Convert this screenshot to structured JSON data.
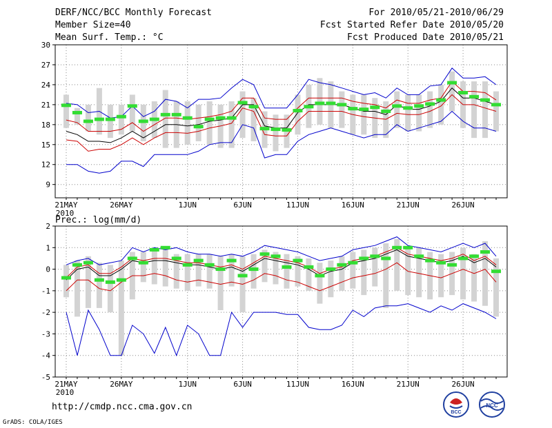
{
  "header": {
    "title": "DERF/NCC/BCC Monthly Forecast",
    "member": "Member Size=40",
    "variable": "Mean Surf. Temp.: °C",
    "period": "For 2010/05/21-2010/06/29",
    "started": "Fcst Started Refer Date 2010/05/20",
    "produced": "Fcst Produced Date 2010/05/21"
  },
  "footer": {
    "url": "http://cmdp.ncc.cma.gov.cn",
    "credit": "GrADS: COLA/IGES",
    "logo_bcc": "BCC",
    "logo_ncc": "NCC"
  },
  "colors": {
    "ensemble_bar": "#d3d3d3",
    "observation": "#33dd33",
    "mean": "#000000",
    "spread": "#cc0000",
    "extreme": "#0000cc",
    "grid": "#888888"
  },
  "chart_data": [
    {
      "type": "line",
      "title": "Mean Surf. Temp.: °C",
      "xlabel": "",
      "ylabel": "",
      "x": [
        "21MAY",
        "22",
        "23",
        "24",
        "25",
        "26MAY",
        "27",
        "28",
        "29",
        "30",
        "31",
        "1JUN",
        "2",
        "3",
        "4",
        "5",
        "6JUN",
        "7",
        "8",
        "9",
        "10",
        "11JUN",
        "12",
        "13",
        "14",
        "15",
        "16JUN",
        "17",
        "18",
        "19",
        "20",
        "21JUN",
        "22",
        "23",
        "24",
        "25",
        "26JUN",
        "27",
        "28",
        "29"
      ],
      "xticks": [
        {
          "label": "21MAY",
          "index": 0,
          "sub": "2010"
        },
        {
          "label": "26MAY",
          "index": 5
        },
        {
          "label": "1JUN",
          "index": 11
        },
        {
          "label": "6JUN",
          "index": 16
        },
        {
          "label": "11JUN",
          "index": 21
        },
        {
          "label": "16JUN",
          "index": 26
        },
        {
          "label": "21JUN",
          "index": 31
        },
        {
          "label": "26JUN",
          "index": 36
        }
      ],
      "yticks": [
        9,
        12,
        15,
        18,
        21,
        24,
        27,
        30
      ],
      "ylim": [
        7,
        30
      ],
      "series": [
        {
          "name": "max",
          "values": [
            21.2,
            21.0,
            19.8,
            20.0,
            19.0,
            19.2,
            20.8,
            19.2,
            20.0,
            21.8,
            21.5,
            20.5,
            21.8,
            21.8,
            22.0,
            23.5,
            24.8,
            24.0,
            20.5,
            20.5,
            20.5,
            22.5,
            24.8,
            24.3,
            24.0,
            23.5,
            23.0,
            22.5,
            22.8,
            22.0,
            23.5,
            22.5,
            22.5,
            23.8,
            24.0,
            26.5,
            25.0,
            25.0,
            25.2,
            24.0
          ]
        },
        {
          "name": "upper",
          "values": [
            18.7,
            18.3,
            17.0,
            17.0,
            17.0,
            17.3,
            18.3,
            17.0,
            18.0,
            19.0,
            19.0,
            18.8,
            19.0,
            19.2,
            19.5,
            20.0,
            22.0,
            22.0,
            19.0,
            18.8,
            18.8,
            20.5,
            22.0,
            22.0,
            22.0,
            22.0,
            21.5,
            21.2,
            21.0,
            20.5,
            21.7,
            21.2,
            21.2,
            21.7,
            22.0,
            24.5,
            23.0,
            23.0,
            22.8,
            21.7
          ]
        },
        {
          "name": "mean",
          "values": [
            17.0,
            16.5,
            15.5,
            15.5,
            15.3,
            16.0,
            17.0,
            16.0,
            17.0,
            18.0,
            18.0,
            17.8,
            18.0,
            18.5,
            18.7,
            19.0,
            21.0,
            21.0,
            17.8,
            17.5,
            17.5,
            19.8,
            21.0,
            21.0,
            21.0,
            21.0,
            20.5,
            20.0,
            20.0,
            19.5,
            21.0,
            20.3,
            20.3,
            20.8,
            21.5,
            23.5,
            22.0,
            22.0,
            21.5,
            21.0
          ]
        },
        {
          "name": "lower",
          "values": [
            15.7,
            15.5,
            14.0,
            14.3,
            14.3,
            15.0,
            16.0,
            15.0,
            16.0,
            16.8,
            16.8,
            16.7,
            17.0,
            17.5,
            17.8,
            18.2,
            20.5,
            20.0,
            16.5,
            16.3,
            16.3,
            18.5,
            20.0,
            20.0,
            20.0,
            20.0,
            19.5,
            19.2,
            19.0,
            18.8,
            19.7,
            19.5,
            19.5,
            20.0,
            20.8,
            22.5,
            21.0,
            21.0,
            20.5,
            20.0
          ]
        },
        {
          "name": "min",
          "values": [
            12.0,
            12.0,
            11.0,
            10.7,
            11.0,
            12.5,
            12.5,
            11.7,
            13.5,
            13.5,
            13.5,
            13.5,
            14.0,
            15.0,
            15.3,
            15.3,
            18.0,
            17.5,
            13.0,
            13.5,
            13.5,
            15.5,
            16.5,
            17.0,
            17.5,
            17.0,
            16.5,
            16.0,
            16.5,
            16.5,
            18.0,
            17.0,
            17.5,
            18.0,
            18.5,
            20.0,
            18.5,
            17.5,
            17.5,
            17.0
          ]
        },
        {
          "name": "observed",
          "values": [
            20.9,
            19.8,
            18.5,
            18.8,
            18.8,
            19.2,
            20.8,
            18.5,
            18.8,
            19.5,
            19.5,
            19.0,
            17.7,
            18.8,
            19.0,
            19.0,
            21.3,
            20.7,
            17.4,
            17.3,
            17.2,
            20.1,
            20.7,
            21.2,
            21.2,
            21.0,
            20.4,
            20.3,
            20.6,
            20.0,
            20.8,
            20.5,
            20.8,
            21.1,
            21.7,
            24.3,
            22.8,
            22.2,
            21.7,
            21.0
          ]
        }
      ],
      "ensemble_range": [
        [
          17.5,
          22.5
        ],
        [
          18.0,
          20.5
        ],
        [
          17.0,
          21.0
        ],
        [
          16.5,
          23.5
        ],
        [
          16.0,
          21.0
        ],
        [
          16.5,
          21.0
        ],
        [
          17.0,
          22.5
        ],
        [
          15.5,
          21.0
        ],
        [
          16.0,
          21.5
        ],
        [
          14.5,
          23.2
        ],
        [
          14.5,
          21.5
        ],
        [
          15.0,
          21.5
        ],
        [
          15.5,
          21.0
        ],
        [
          15.0,
          21.5
        ],
        [
          14.5,
          21.0
        ],
        [
          14.5,
          21.5
        ],
        [
          16.0,
          23.0
        ],
        [
          15.5,
          22.0
        ],
        [
          14.5,
          20.0
        ],
        [
          14.0,
          19.5
        ],
        [
          14.5,
          19.5
        ],
        [
          16.5,
          22.5
        ],
        [
          17.5,
          24.0
        ],
        [
          18.0,
          25.0
        ],
        [
          17.5,
          24.5
        ],
        [
          17.5,
          23.0
        ],
        [
          16.5,
          22.5
        ],
        [
          16.5,
          22.5
        ],
        [
          16.0,
          22.0
        ],
        [
          16.0,
          21.5
        ],
        [
          17.5,
          23.0
        ],
        [
          17.0,
          22.5
        ],
        [
          17.0,
          22.5
        ],
        [
          17.5,
          23.0
        ],
        [
          18.0,
          24.0
        ],
        [
          20.0,
          26.0
        ],
        [
          17.5,
          24.5
        ],
        [
          16.0,
          24.5
        ],
        [
          16.0,
          24.5
        ],
        [
          17.0,
          23.0
        ]
      ]
    },
    {
      "type": "line",
      "title": "Prec.: log(mm/d)",
      "xlabel": "",
      "ylabel": "",
      "x": [
        "21MAY",
        "22",
        "23",
        "24",
        "25",
        "26MAY",
        "27",
        "28",
        "29",
        "30",
        "31",
        "1JUN",
        "2",
        "3",
        "4",
        "5",
        "6JUN",
        "7",
        "8",
        "9",
        "10",
        "11JUN",
        "12",
        "13",
        "14",
        "15",
        "16JUN",
        "17",
        "18",
        "19",
        "20",
        "21JUN",
        "22",
        "23",
        "24",
        "25",
        "26JUN",
        "27",
        "28",
        "29"
      ],
      "xticks": [
        {
          "label": "21MAY",
          "index": 0,
          "sub": "2010"
        },
        {
          "label": "26MAY",
          "index": 5
        },
        {
          "label": "1JUN",
          "index": 11
        },
        {
          "label": "6JUN",
          "index": 16
        },
        {
          "label": "11JUN",
          "index": 21
        },
        {
          "label": "16JUN",
          "index": 26
        },
        {
          "label": "21JUN",
          "index": 31
        },
        {
          "label": "26JUN",
          "index": 36
        }
      ],
      "yticks": [
        -5,
        -4,
        -3,
        -2,
        -1,
        0,
        1,
        2
      ],
      "ylim": [
        -5,
        2
      ],
      "series": [
        {
          "name": "max",
          "values": [
            0.2,
            0.4,
            0.5,
            0.2,
            0.3,
            0.4,
            1.0,
            0.8,
            1.0,
            0.9,
            1.0,
            0.8,
            0.7,
            0.7,
            0.6,
            0.7,
            0.6,
            0.8,
            1.1,
            1.0,
            0.9,
            0.8,
            0.6,
            0.4,
            0.5,
            0.6,
            0.9,
            1.0,
            1.1,
            1.3,
            1.5,
            1.1,
            1.0,
            0.9,
            0.8,
            1.0,
            1.2,
            1.0,
            1.2,
            0.6
          ]
        },
        {
          "name": "upper",
          "values": [
            -0.4,
            0.1,
            0.2,
            -0.2,
            -0.2,
            0.1,
            0.5,
            0.4,
            0.5,
            0.5,
            0.4,
            0.3,
            0.3,
            0.2,
            0.1,
            0.2,
            0.0,
            0.3,
            0.6,
            0.5,
            0.4,
            0.3,
            0.1,
            -0.2,
            0.0,
            0.1,
            0.4,
            0.5,
            0.6,
            0.8,
            1.0,
            0.7,
            0.6,
            0.5,
            0.4,
            0.5,
            0.7,
            0.4,
            0.6,
            0.2
          ]
        },
        {
          "name": "mean",
          "values": [
            -0.5,
            0.0,
            0.1,
            -0.3,
            -0.3,
            0.0,
            0.4,
            0.3,
            0.4,
            0.4,
            0.3,
            0.2,
            0.2,
            0.1,
            0.0,
            0.1,
            -0.1,
            0.2,
            0.5,
            0.4,
            0.3,
            0.2,
            0.0,
            -0.3,
            -0.1,
            0.0,
            0.3,
            0.4,
            0.5,
            0.7,
            0.9,
            0.6,
            0.5,
            0.4,
            0.3,
            0.4,
            0.6,
            0.3,
            0.5,
            0.1
          ]
        },
        {
          "name": "lower",
          "values": [
            -1.0,
            -0.5,
            -0.5,
            -0.9,
            -1.0,
            -0.6,
            -0.3,
            -0.3,
            -0.2,
            -0.3,
            -0.5,
            -0.6,
            -0.5,
            -0.6,
            -0.7,
            -0.6,
            -0.7,
            -0.5,
            -0.2,
            -0.3,
            -0.5,
            -0.6,
            -0.8,
            -1.0,
            -0.8,
            -0.6,
            -0.4,
            -0.3,
            -0.2,
            0.0,
            0.3,
            -0.1,
            -0.2,
            -0.3,
            -0.4,
            -0.2,
            0.0,
            -0.2,
            0.0,
            -0.6
          ]
        },
        {
          "name": "min",
          "values": [
            -2.0,
            -4.0,
            -1.9,
            -2.8,
            -4.0,
            -4.0,
            -2.6,
            -3.0,
            -3.9,
            -2.7,
            -4.0,
            -2.6,
            -3.0,
            -4.0,
            -4.0,
            -2.0,
            -2.7,
            -2.0,
            -2.0,
            -2.0,
            -2.1,
            -2.1,
            -2.7,
            -2.8,
            -2.8,
            -2.6,
            -1.9,
            -2.2,
            -1.8,
            -1.7,
            -1.7,
            -1.6,
            -1.8,
            -2.0,
            -1.7,
            -1.9,
            -1.6,
            -1.8,
            -2.0,
            -2.3
          ]
        },
        {
          "name": "observed",
          "values": [
            -0.4,
            0.2,
            0.3,
            -0.5,
            -0.6,
            -0.5,
            0.5,
            0.3,
            0.9,
            1.0,
            0.5,
            0.2,
            0.4,
            0.2,
            0.0,
            0.4,
            -0.3,
            0.0,
            0.7,
            0.6,
            0.1,
            0.4,
            0.1,
            -0.3,
            0.0,
            0.2,
            0.3,
            0.5,
            0.6,
            0.5,
            1.0,
            1.0,
            0.6,
            0.4,
            0.3,
            0.2,
            0.5,
            0.6,
            0.8,
            -0.1
          ]
        }
      ],
      "ensemble_range": [
        [
          -1.3,
          0.2
        ],
        [
          -2.2,
          0.4
        ],
        [
          -1.8,
          0.6
        ],
        [
          -1.8,
          0.3
        ],
        [
          -2.0,
          0.2
        ],
        [
          -4.0,
          0.4
        ],
        [
          -1.4,
          0.8
        ],
        [
          -0.6,
          0.8
        ],
        [
          -0.7,
          1.0
        ],
        [
          -0.8,
          1.0
        ],
        [
          -0.9,
          0.7
        ],
        [
          -1.0,
          0.7
        ],
        [
          -0.8,
          0.7
        ],
        [
          -0.9,
          0.7
        ],
        [
          -1.9,
          0.6
        ],
        [
          -0.8,
          0.7
        ],
        [
          -2.0,
          0.6
        ],
        [
          -0.9,
          0.7
        ],
        [
          -0.6,
          0.9
        ],
        [
          -0.7,
          0.8
        ],
        [
          -0.9,
          0.7
        ],
        [
          -0.8,
          0.6
        ],
        [
          -1.0,
          0.5
        ],
        [
          -1.6,
          0.3
        ],
        [
          -1.3,
          0.4
        ],
        [
          -1.0,
          0.6
        ],
        [
          -0.9,
          0.8
        ],
        [
          -1.2,
          0.9
        ],
        [
          -0.8,
          1.0
        ],
        [
          -1.8,
          1.2
        ],
        [
          -1.0,
          1.4
        ],
        [
          -1.2,
          1.0
        ],
        [
          -1.3,
          1.0
        ],
        [
          -1.4,
          0.8
        ],
        [
          -1.3,
          0.7
        ],
        [
          -1.2,
          0.8
        ],
        [
          -1.4,
          1.0
        ],
        [
          -1.5,
          0.7
        ],
        [
          -1.7,
          1.3
        ],
        [
          -2.2,
          0.5
        ]
      ]
    }
  ]
}
